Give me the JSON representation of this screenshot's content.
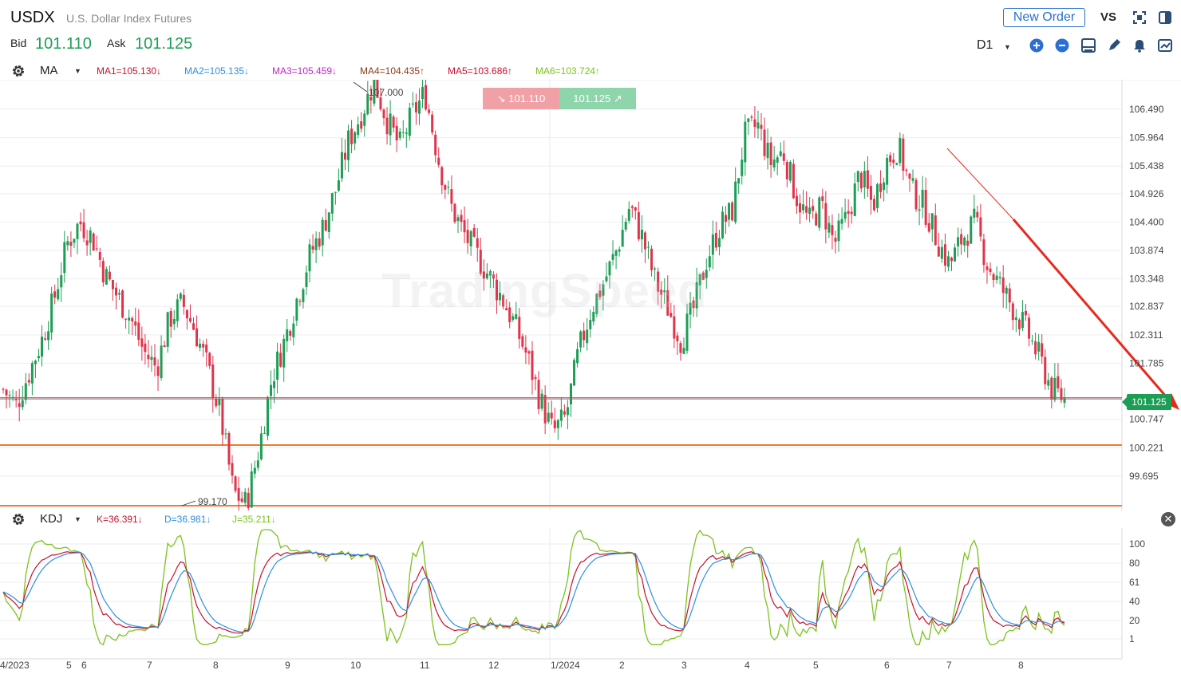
{
  "header": {
    "symbol": "USDX",
    "name": "U.S. Dollar Index Futures",
    "bid_label": "Bid",
    "bid_value": "101.110",
    "ask_label": "Ask",
    "ask_value": "101.125",
    "new_order": "New Order",
    "vs": "VS",
    "timeframe": "D1"
  },
  "ma_bar": {
    "name": "MA",
    "values": [
      {
        "text": "MA1=105.130↓",
        "color": "#c8102e"
      },
      {
        "text": "MA2=105.135↓",
        "color": "#2f8fe0"
      },
      {
        "text": "MA3=105.459↓",
        "color": "#c026c8"
      },
      {
        "text": "MA4=104.435↑",
        "color": "#8a3a14"
      },
      {
        "text": "MA5=103.686↑",
        "color": "#c8102e"
      },
      {
        "text": "MA6=103.724↑",
        "color": "#7cc21e"
      }
    ]
  },
  "kdj_bar": {
    "name": "KDJ",
    "values": [
      {
        "text": "K=36.391↓",
        "color": "#c8102e"
      },
      {
        "text": "D=36.981↓",
        "color": "#2f8fe0"
      },
      {
        "text": "J=35.211↓",
        "color": "#7cc21e"
      }
    ]
  },
  "quote_boxes": {
    "bid": "101.110",
    "ask": "101.125"
  },
  "price_tag": "101.125",
  "watermark": "TradingSpeed",
  "markers": {
    "high": "107.000",
    "low": "99.170"
  },
  "price_axis": [
    "106.490",
    "105.964",
    "105.438",
    "104.926",
    "104.400",
    "103.874",
    "103.348",
    "102.837",
    "102.311",
    "101.785",
    "100.747",
    "100.221",
    "99.695"
  ],
  "kdj_axis": [
    "100",
    "80",
    "61",
    "40",
    "20",
    "1"
  ],
  "time_axis": [
    "4/2023",
    "5",
    "6",
    "7",
    "8",
    "9",
    "10",
    "11",
    "12",
    "1/2024",
    "2",
    "3",
    "4",
    "5",
    "6",
    "7",
    "8"
  ],
  "colors": {
    "up": "#1d9e55",
    "down": "#e0344c",
    "support": "#f07b2f",
    "trend": "#e8281e",
    "k": "#c8102e",
    "d": "#2f8fe0",
    "j": "#7cc21e"
  },
  "chart_data": {
    "type": "candlestick",
    "instrument": "USDX",
    "timeframe": "D1",
    "close_path": [
      101.3,
      101.0,
      101.6,
      102.2,
      103.0,
      104.0,
      104.4,
      104.1,
      103.4,
      103.0,
      102.6,
      102.0,
      101.7,
      102.6,
      102.9,
      102.4,
      101.7,
      100.8,
      99.4,
      99.17,
      100.2,
      101.5,
      102.2,
      103.0,
      103.8,
      104.3,
      105.0,
      105.9,
      106.4,
      107.0,
      106.3,
      105.8,
      106.4,
      106.8,
      105.6,
      104.7,
      104.2,
      103.8,
      103.4,
      103.0,
      102.5,
      101.9,
      101.1,
      100.5,
      100.8,
      102.0,
      102.8,
      103.3,
      103.9,
      104.7,
      104.1,
      103.3,
      102.8,
      102.2,
      102.8,
      103.7,
      104.3,
      104.6,
      106.0,
      106.2,
      105.5,
      105.7,
      104.9,
      104.4,
      104.7,
      104.0,
      104.5,
      105.3,
      104.7,
      105.5,
      105.8,
      105.0,
      104.7,
      104.1,
      103.6,
      104.1,
      104.4,
      103.6,
      103.2,
      102.8,
      102.4,
      101.9,
      101.3,
      101.125
    ],
    "kdj": {
      "K": 36.391,
      "D": 36.981,
      "J": 35.211
    },
    "price_range": [
      99.17,
      107.0
    ]
  }
}
